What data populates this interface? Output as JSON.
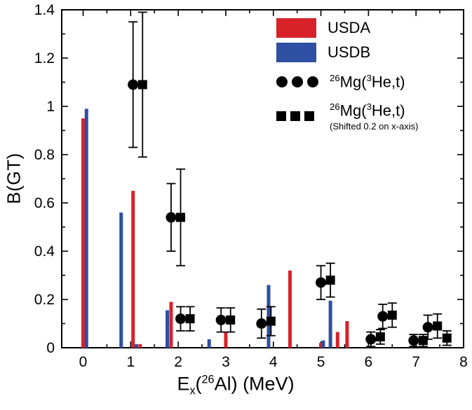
{
  "axes": {
    "ylabel": "B(GT)",
    "xlabel_e": "E",
    "xlabel_sub": "x",
    "xlabel_open": "(",
    "xlabel_mass": "26",
    "xlabel_rest": "Al) (MeV)"
  },
  "legend": {
    "usda_label": "USDA",
    "usdb_label": "USDB",
    "mg_mass": "26",
    "mg_body": "Mg(",
    "he_mass": "3",
    "he_body": "He,t)",
    "shift_note": "(Shifted 0.2 on x-axis)"
  },
  "chart_data": {
    "type": "mixed",
    "title": "",
    "xlabel": "Ex(26Al) (MeV)",
    "ylabel": "B(GT)",
    "xlim": [
      -0.45,
      8
    ],
    "ylim": [
      0,
      1.4
    ],
    "x_ticks": [
      0,
      1,
      2,
      3,
      4,
      5,
      6,
      7,
      8
    ],
    "x_tick_labels": [
      "0",
      "1",
      "2",
      "3",
      "4",
      "5",
      "6",
      "7",
      "8"
    ],
    "y_ticks": [
      0,
      0.2,
      0.4,
      0.6,
      0.8,
      1,
      1.2,
      1.4
    ],
    "y_tick_labels": [
      "0",
      "0.2",
      "0.4",
      "0.6",
      "0.8",
      "1",
      "1.2",
      "1.4"
    ],
    "x_minor_step": 0.5,
    "y_minor_step": 0.1,
    "grid": false,
    "legend_position": "top-right",
    "series": [
      {
        "name": "USDA",
        "type": "bar",
        "color": "#d8222a",
        "points": [
          [
            0.0,
            0.95
          ],
          [
            1.05,
            0.65
          ],
          [
            1.2,
            0.015
          ],
          [
            1.85,
            0.19
          ],
          [
            3.0,
            0.065
          ],
          [
            4.35,
            0.32
          ],
          [
            5.0,
            0.02
          ],
          [
            5.35,
            0.065
          ],
          [
            5.55,
            0.11
          ]
        ]
      },
      {
        "name": "USDB",
        "type": "bar",
        "color": "#2e4fa2",
        "points": [
          [
            0.07,
            0.99
          ],
          [
            0.8,
            0.56
          ],
          [
            1.12,
            0.015
          ],
          [
            1.77,
            0.155
          ],
          [
            2.65,
            0.035
          ],
          [
            3.9,
            0.26
          ],
          [
            5.05,
            0.03
          ],
          [
            5.2,
            0.195
          ]
        ]
      },
      {
        "name": "26Mg(3He,t)",
        "type": "scatter",
        "marker": "circle",
        "color": "#000000",
        "points": [
          [
            1.05,
            1.09,
            0.26
          ],
          [
            1.85,
            0.54,
            0.14
          ],
          [
            2.05,
            0.12,
            0.05
          ],
          [
            2.9,
            0.115,
            0.05
          ],
          [
            3.75,
            0.1,
            0.06
          ],
          [
            5.0,
            0.27,
            0.07
          ],
          [
            6.05,
            0.035,
            0.03
          ],
          [
            6.3,
            0.13,
            0.05
          ],
          [
            6.95,
            0.03,
            0.025
          ],
          [
            7.25,
            0.085,
            0.05
          ]
        ]
      },
      {
        "name": "26Mg(3He,t) (Shifted 0.2 on x-axis)",
        "type": "scatter",
        "marker": "square",
        "color": "#000000",
        "points": [
          [
            1.25,
            1.09,
            0.3
          ],
          [
            2.05,
            0.54,
            0.2
          ],
          [
            2.25,
            0.12,
            0.05
          ],
          [
            3.1,
            0.115,
            0.05
          ],
          [
            3.95,
            0.11,
            0.06
          ],
          [
            5.2,
            0.28,
            0.07
          ],
          [
            6.25,
            0.045,
            0.03
          ],
          [
            6.5,
            0.135,
            0.05
          ],
          [
            7.15,
            0.03,
            0.025
          ],
          [
            7.45,
            0.09,
            0.05
          ],
          [
            7.65,
            0.04,
            0.03
          ]
        ]
      }
    ]
  }
}
